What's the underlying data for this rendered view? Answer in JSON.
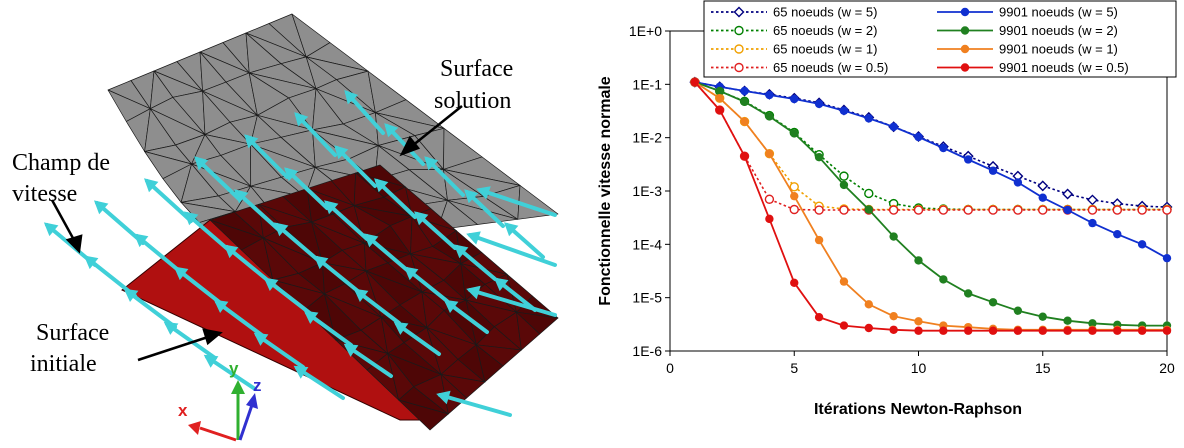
{
  "illustration": {
    "labels": {
      "surface_solution": [
        "Surface",
        "solution"
      ],
      "champ_vitesse": [
        "Champ de",
        "vitesse"
      ],
      "surface_initiale": [
        "Surface",
        "initiale"
      ]
    },
    "axes_triad": {
      "x": "x",
      "y": "y",
      "z": "z"
    },
    "colors": {
      "solution_surface": "#8e8e8e",
      "initial_surface": "#b01010",
      "dark_surface": "#5a0808",
      "arrows": "#40d0d8",
      "triad_x": "#e02020",
      "triad_y": "#30b030",
      "triad_z": "#3030d0"
    }
  },
  "chart_data": {
    "type": "line",
    "xlabel": "Itérations Newton-Raphson",
    "ylabel": "Fonctionnelle vitesse normale",
    "xlim": [
      0,
      20
    ],
    "ylim_log10": [
      -6,
      0
    ],
    "yscale": "log",
    "x_ticks": [
      "0",
      "5",
      "10",
      "15",
      "20"
    ],
    "y_ticks": [
      "1E-6",
      "1E-5",
      "1E-4",
      "1E-3",
      "1E-2",
      "1E-1",
      "1E+0"
    ],
    "grid": false,
    "legend_position": "top",
    "series": [
      {
        "name": "65 noeuds (w = 5)",
        "color": "#000080",
        "style": "dotted",
        "marker": "diamond-open",
        "x": [
          1,
          2,
          3,
          4,
          5,
          6,
          7,
          8,
          9,
          10,
          11,
          12,
          13,
          14,
          15,
          16,
          17,
          18,
          19,
          20
        ],
        "y": [
          0.11,
          0.09,
          0.075,
          0.065,
          0.055,
          0.045,
          0.033,
          0.024,
          0.016,
          0.0105,
          0.0068,
          0.0045,
          0.0029,
          0.0019,
          0.00125,
          0.00088,
          0.00068,
          0.00058,
          0.00052,
          0.0005
        ]
      },
      {
        "name": "9901 noeuds (w = 5)",
        "color": "#1030d0",
        "style": "solid",
        "marker": "circle-filled",
        "x": [
          1,
          2,
          3,
          4,
          5,
          6,
          7,
          8,
          9,
          10,
          11,
          12,
          13,
          14,
          15,
          16,
          17,
          18,
          19,
          20
        ],
        "y": [
          0.11,
          0.09,
          0.075,
          0.063,
          0.053,
          0.043,
          0.032,
          0.023,
          0.016,
          0.0103,
          0.0064,
          0.0039,
          0.0024,
          0.00145,
          0.00075,
          0.00044,
          0.00025,
          0.000155,
          0.0001,
          5.5e-05
        ]
      },
      {
        "name": "65 noeuds (w = 2)",
        "color": "#008000",
        "style": "dotted",
        "marker": "circle-open",
        "x": [
          1,
          2,
          3,
          4,
          5,
          6,
          7,
          8,
          9,
          10,
          11,
          12,
          13,
          14,
          15,
          16,
          17,
          18,
          19,
          20
        ],
        "y": [
          0.11,
          0.075,
          0.048,
          0.026,
          0.0125,
          0.0048,
          0.0019,
          0.0009,
          0.00058,
          0.00048,
          0.00046,
          0.00045,
          0.00045,
          0.00045,
          0.00045,
          0.00045,
          0.00045,
          0.00045,
          0.00045,
          0.00045
        ]
      },
      {
        "name": "9901 noeuds (w = 2)",
        "color": "#208020",
        "style": "solid",
        "marker": "circle-filled",
        "x": [
          1,
          2,
          3,
          4,
          5,
          6,
          7,
          8,
          9,
          10,
          11,
          12,
          13,
          14,
          15,
          16,
          17,
          18,
          19,
          20
        ],
        "y": [
          0.11,
          0.075,
          0.047,
          0.025,
          0.012,
          0.0043,
          0.0013,
          0.00045,
          0.00014,
          5e-05,
          2.2e-05,
          1.2e-05,
          8.2e-06,
          5.7e-06,
          4.4e-06,
          3.7e-06,
          3.3e-06,
          3.1e-06,
          3e-06,
          3e-06
        ]
      },
      {
        "name": "65 noeuds (w = 1)",
        "color": "#f0a000",
        "style": "dotted",
        "marker": "circle-open",
        "x": [
          1,
          2,
          3,
          4,
          5,
          6,
          7,
          8,
          9,
          10,
          11,
          12,
          13,
          14,
          15,
          16,
          17,
          18,
          19,
          20
        ],
        "y": [
          0.11,
          0.055,
          0.02,
          0.005,
          0.0012,
          0.00052,
          0.00046,
          0.00045,
          0.00045,
          0.00045,
          0.00045,
          0.00045,
          0.00045,
          0.00045,
          0.00045,
          0.00045,
          0.00045,
          0.00045,
          0.00045,
          0.00045
        ]
      },
      {
        "name": "9901 noeuds (w = 1)",
        "color": "#f08020",
        "style": "solid",
        "marker": "circle-filled",
        "x": [
          1,
          2,
          3,
          4,
          5,
          6,
          7,
          8,
          9,
          10,
          11,
          12,
          13,
          14,
          15,
          16,
          17,
          18,
          19,
          20
        ],
        "y": [
          0.11,
          0.055,
          0.02,
          0.005,
          0.0008,
          0.00012,
          2e-05,
          7.5e-06,
          4.5e-06,
          3.6e-06,
          3e-06,
          2.8e-06,
          2.6e-06,
          2.5e-06,
          2.5e-06,
          2.5e-06,
          2.5e-06,
          2.5e-06,
          2.5e-06,
          2.5e-06
        ]
      },
      {
        "name": "65 noeuds (w = 0.5)",
        "color": "#e02020",
        "style": "dotted",
        "marker": "circle-open",
        "x": [
          1,
          2,
          3,
          4,
          5,
          6,
          7,
          8,
          9,
          10,
          11,
          12,
          13,
          14,
          15,
          16,
          17,
          18,
          19,
          20
        ],
        "y": [
          0.11,
          0.033,
          0.0045,
          0.0007,
          0.00045,
          0.00044,
          0.00044,
          0.00044,
          0.00044,
          0.00044,
          0.00044,
          0.00044,
          0.00044,
          0.00044,
          0.00044,
          0.00044,
          0.00044,
          0.00044,
          0.00044,
          0.00044
        ]
      },
      {
        "name": "9901 noeuds (w = 0.5)",
        "color": "#e01010",
        "style": "solid",
        "marker": "circle-filled",
        "x": [
          1,
          2,
          3,
          4,
          5,
          6,
          7,
          8,
          9,
          10,
          11,
          12,
          13,
          14,
          15,
          16,
          17,
          18,
          19,
          20
        ],
        "y": [
          0.11,
          0.033,
          0.0045,
          0.0003,
          1.9e-05,
          4.3e-06,
          3e-06,
          2.7e-06,
          2.5e-06,
          2.4e-06,
          2.4e-06,
          2.4e-06,
          2.4e-06,
          2.4e-06,
          2.4e-06,
          2.4e-06,
          2.4e-06,
          2.4e-06,
          2.4e-06,
          2.4e-06
        ]
      }
    ]
  }
}
